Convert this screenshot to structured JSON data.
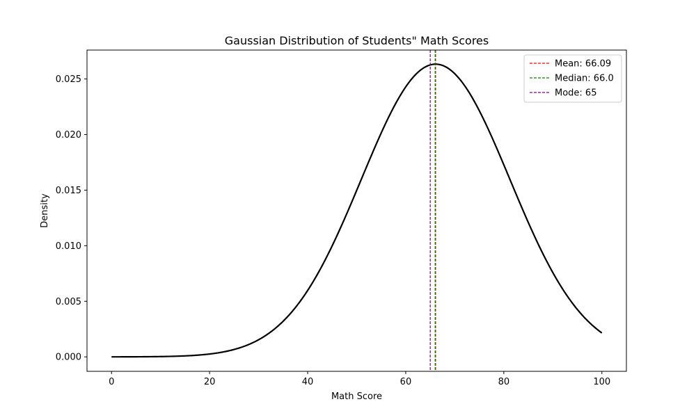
{
  "chart_data": {
    "type": "line",
    "title": "Gaussian Distribution of Students\" Math Scores",
    "xlabel": "Math Score",
    "ylabel": "Density",
    "xlim": [
      -5,
      105
    ],
    "ylim": [
      -0.0013,
      0.0276
    ],
    "xticks": [
      0,
      20,
      40,
      60,
      80,
      100
    ],
    "xtick_labels": [
      "0",
      "20",
      "40",
      "60",
      "80",
      "100"
    ],
    "yticks": [
      0.0,
      0.005,
      0.01,
      0.015,
      0.02,
      0.025
    ],
    "ytick_labels": [
      "0.000",
      "0.005",
      "0.010",
      "0.015",
      "0.020",
      "0.025"
    ],
    "grid": false,
    "legend_position": "top-right",
    "series": [
      {
        "kind": "curve",
        "color": "#000000",
        "distribution": {
          "mean": 66.09,
          "std": 15.15
        },
        "x_range": [
          0,
          100
        ]
      }
    ],
    "reference_lines": [
      {
        "name": "Mean: 66.09",
        "x": 66.09,
        "color": "#ff0000",
        "style": "dashed"
      },
      {
        "name": "Median: 66.0",
        "x": 66.0,
        "color": "#008000",
        "style": "dashed"
      },
      {
        "name": "Mode: 65",
        "x": 65,
        "color": "#800080",
        "style": "dashed"
      }
    ]
  }
}
